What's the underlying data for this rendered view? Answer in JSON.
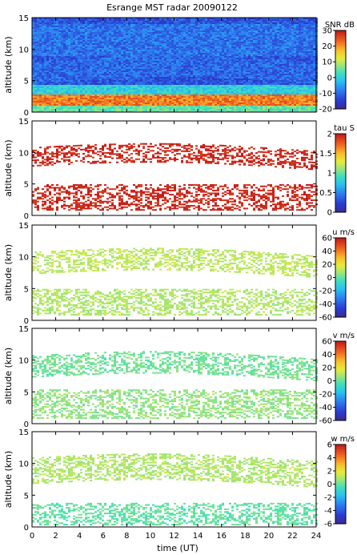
{
  "figure": {
    "title": "Esrange MST radar 20090122",
    "xlabel": "time (UT)"
  },
  "x_axis": {
    "range": [
      0,
      24
    ],
    "ticks": [
      0,
      2,
      4,
      6,
      8,
      10,
      12,
      14,
      16,
      18,
      20,
      22,
      24
    ]
  },
  "chart_data": [
    {
      "type": "heatmap",
      "ylabel": "altitude (km)",
      "ylim": [
        0,
        15
      ],
      "yticks": [
        0,
        5,
        10,
        15
      ],
      "colorbar": {
        "label": "SNR dB",
        "range": [
          -20,
          30
        ],
        "ticks": [
          30,
          20,
          10,
          0,
          -10,
          -20
        ]
      },
      "layers": [
        {
          "name": "noise-floor",
          "alt": [
            0,
            15
          ],
          "value": -12
        },
        {
          "name": "upper-band",
          "alt": [
            9,
            14
          ],
          "value": -9
        },
        {
          "name": "mid-band",
          "alt": [
            4.5,
            8
          ],
          "value": -10
        },
        {
          "name": "lower-band",
          "alt": [
            2.8,
            4.5
          ],
          "value": 0
        },
        {
          "name": "strong-layer",
          "alt": [
            1.2,
            2.8
          ],
          "value": 22
        },
        {
          "name": "ground-layer",
          "alt": [
            0,
            1.2
          ],
          "value": 5
        }
      ]
    },
    {
      "type": "heatmap",
      "ylabel": "altitude (km)",
      "ylim": [
        0,
        15
      ],
      "yticks": [
        0,
        5,
        10,
        15
      ],
      "colorbar": {
        "label": "tau S",
        "range": [
          0,
          2
        ],
        "ticks": [
          2,
          1.5,
          1,
          0.5,
          0
        ]
      },
      "layers": [
        {
          "name": "upper-layer",
          "alt": [
            8,
            11
          ],
          "value": 1.95
        },
        {
          "name": "lower-layer",
          "alt": [
            1,
            5
          ],
          "value": 1.95
        }
      ]
    },
    {
      "type": "heatmap",
      "ylabel": "altitude (km)",
      "ylim": [
        0,
        15
      ],
      "yticks": [
        0,
        5,
        10,
        15
      ],
      "colorbar": {
        "label": "u m/s",
        "range": [
          -60,
          60
        ],
        "ticks": [
          60,
          40,
          20,
          0,
          -20,
          -40,
          -60
        ]
      },
      "layers": [
        {
          "name": "upper-layer",
          "alt": [
            7.5,
            11
          ],
          "value": 12
        },
        {
          "name": "lower-layer",
          "alt": [
            1,
            5
          ],
          "value": 10
        }
      ]
    },
    {
      "type": "heatmap",
      "ylabel": "altitude (km)",
      "ylim": [
        0,
        15
      ],
      "yticks": [
        0,
        5,
        10,
        15
      ],
      "colorbar": {
        "label": "v m/s",
        "range": [
          -60,
          60
        ],
        "ticks": [
          60,
          40,
          20,
          0,
          -20,
          -40,
          -60
        ]
      },
      "layers": [
        {
          "name": "upper-layer",
          "alt": [
            7.5,
            11
          ],
          "value": 2
        },
        {
          "name": "lower-layer",
          "alt": [
            1,
            5.5
          ],
          "value": 6
        }
      ]
    },
    {
      "type": "heatmap",
      "ylabel": "altitude (km)",
      "ylim": [
        0,
        15
      ],
      "yticks": [
        0,
        5,
        10,
        15
      ],
      "colorbar": {
        "label": "w m/s",
        "range": [
          -6,
          6
        ],
        "ticks": [
          6,
          4,
          2,
          0,
          -2,
          -4,
          -6
        ]
      },
      "layers": [
        {
          "name": "upper-layer",
          "alt": [
            7,
            11
          ],
          "value": 1
        },
        {
          "name": "lower-layer",
          "alt": [
            0.5,
            4
          ],
          "value": 0
        }
      ]
    }
  ]
}
